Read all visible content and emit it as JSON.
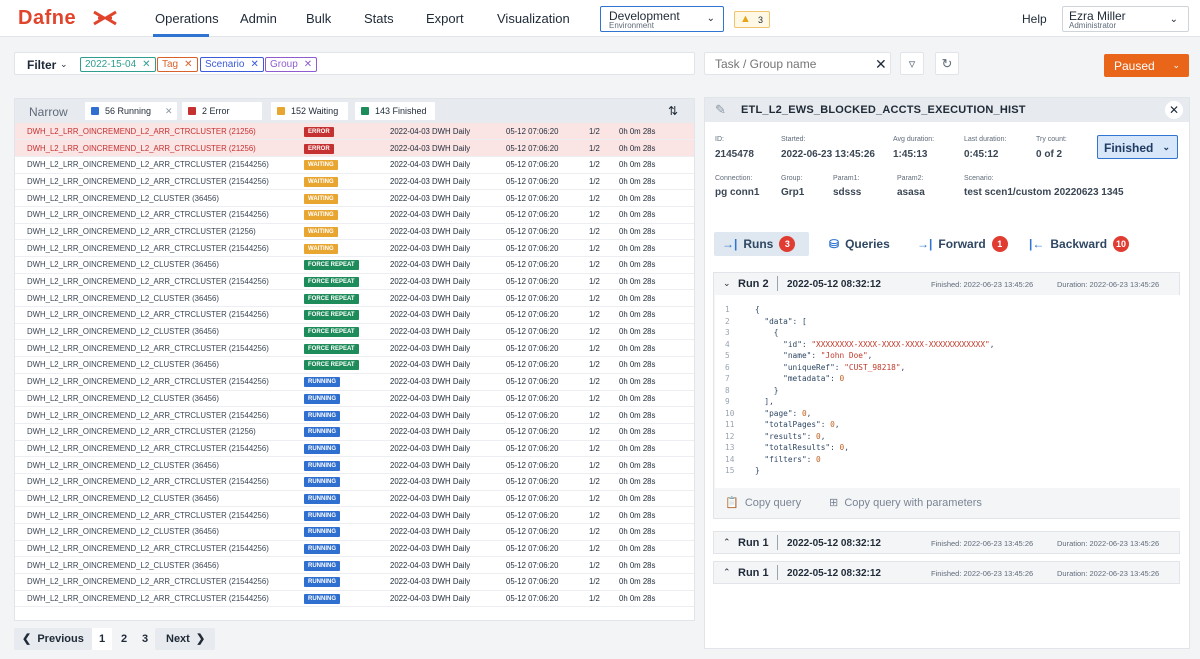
{
  "app": {
    "name": "Dafne"
  },
  "nav": {
    "items": [
      "Operations",
      "Admin",
      "Bulk",
      "Stats",
      "Export",
      "Visualization"
    ],
    "active": "Operations"
  },
  "env": {
    "name": "Development",
    "sub": "Environment"
  },
  "warnings": {
    "count": "3"
  },
  "help": "Help",
  "user": {
    "name": "Ezra Miller",
    "role": "Administrator"
  },
  "filter": {
    "label": "Filter",
    "chips": [
      {
        "text": "2022-15-04",
        "color": "#2f9e8f"
      },
      {
        "text": "Tag",
        "color": "#d9622b"
      },
      {
        "text": "Scenario",
        "color": "#3b5bdb"
      },
      {
        "text": "Group",
        "color": "#8e5cd0"
      }
    ]
  },
  "search": {
    "placeholder": "Task / Group name"
  },
  "status_button": "Paused",
  "stats": {
    "narrow": "Narrow",
    "running": "56 Running",
    "error": "2 Error",
    "waiting": "152 Waiting",
    "finished": "143 Finished"
  },
  "status_colors": {
    "ERROR": "#c53030",
    "WAITING": "#e8a530",
    "FORCE REPEAT": "#1e8b5a",
    "RUNNING": "#2f6fd0"
  },
  "rows": [
    {
      "name": "DWH_L2_LRR_OINCREMEND_L2_ARR_CTRCLUSTER (21256)",
      "status": "ERROR",
      "d1": "2022-04-03 DWH Daily",
      "d2": "05-12 07:06:20",
      "d3": "1/2",
      "d4": "0h 0m 28s"
    },
    {
      "name": "DWH_L2_LRR_OINCREMEND_L2_ARR_CTRCLUSTER (21256)",
      "status": "ERROR",
      "d1": "2022-04-03 DWH Daily",
      "d2": "05-12 07:06:20",
      "d3": "1/2",
      "d4": "0h 0m 28s"
    },
    {
      "name": "DWH_L2_LRR_OINCREMEND_L2_ARR_CTRCLUSTER (21544256)",
      "status": "WAITING",
      "d1": "2022-04-03 DWH Daily",
      "d2": "05-12 07:06:20",
      "d3": "1/2",
      "d4": "0h 0m 28s"
    },
    {
      "name": "DWH_L2_LRR_OINCREMEND_L2_ARR_CTRCLUSTER (21544256)",
      "status": "WAITING",
      "d1": "2022-04-03 DWH Daily",
      "d2": "05-12 07:06:20",
      "d3": "1/2",
      "d4": "0h 0m 28s"
    },
    {
      "name": "DWH_L2_LRR_OINCREMEND_L2_CLUSTER (36456)",
      "status": "WAITING",
      "d1": "2022-04-03 DWH Daily",
      "d2": "05-12 07:06:20",
      "d3": "1/2",
      "d4": "0h 0m 28s"
    },
    {
      "name": "DWH_L2_LRR_OINCREMEND_L2_ARR_CTRCLUSTER (21544256)",
      "status": "WAITING",
      "d1": "2022-04-03 DWH Daily",
      "d2": "05-12 07:06:20",
      "d3": "1/2",
      "d4": "0h 0m 28s"
    },
    {
      "name": "DWH_L2_LRR_OINCREMEND_L2_ARR_CTRCLUSTER (21256)",
      "status": "WAITING",
      "d1": "2022-04-03 DWH Daily",
      "d2": "05-12 07:06:20",
      "d3": "1/2",
      "d4": "0h 0m 28s"
    },
    {
      "name": "DWH_L2_LRR_OINCREMEND_L2_ARR_CTRCLUSTER (21544256)",
      "status": "WAITING",
      "d1": "2022-04-03 DWH Daily",
      "d2": "05-12 07:06:20",
      "d3": "1/2",
      "d4": "0h 0m 28s"
    },
    {
      "name": "DWH_L2_LRR_OINCREMEND_L2_CLUSTER (36456)",
      "status": "FORCE REPEAT",
      "d1": "2022-04-03 DWH Daily",
      "d2": "05-12 07:06:20",
      "d3": "1/2",
      "d4": "0h 0m 28s"
    },
    {
      "name": "DWH_L2_LRR_OINCREMEND_L2_ARR_CTRCLUSTER (21544256)",
      "status": "FORCE REPEAT",
      "d1": "2022-04-03 DWH Daily",
      "d2": "05-12 07:06:20",
      "d3": "1/2",
      "d4": "0h 0m 28s"
    },
    {
      "name": "DWH_L2_LRR_OINCREMEND_L2_CLUSTER (36456)",
      "status": "FORCE REPEAT",
      "d1": "2022-04-03 DWH Daily",
      "d2": "05-12 07:06:20",
      "d3": "1/2",
      "d4": "0h 0m 28s"
    },
    {
      "name": "DWH_L2_LRR_OINCREMEND_L2_ARR_CTRCLUSTER (21544256)",
      "status": "FORCE REPEAT",
      "d1": "2022-04-03 DWH Daily",
      "d2": "05-12 07:06:20",
      "d3": "1/2",
      "d4": "0h 0m 28s"
    },
    {
      "name": "DWH_L2_LRR_OINCREMEND_L2_CLUSTER (36456)",
      "status": "FORCE REPEAT",
      "d1": "2022-04-03 DWH Daily",
      "d2": "05-12 07:06:20",
      "d3": "1/2",
      "d4": "0h 0m 28s"
    },
    {
      "name": "DWH_L2_LRR_OINCREMEND_L2_ARR_CTRCLUSTER (21544256)",
      "status": "FORCE REPEAT",
      "d1": "2022-04-03 DWH Daily",
      "d2": "05-12 07:06:20",
      "d3": "1/2",
      "d4": "0h 0m 28s"
    },
    {
      "name": "DWH_L2_LRR_OINCREMEND_L2_CLUSTER (36456)",
      "status": "FORCE REPEAT",
      "d1": "2022-04-03 DWH Daily",
      "d2": "05-12 07:06:20",
      "d3": "1/2",
      "d4": "0h 0m 28s"
    },
    {
      "name": "DWH_L2_LRR_OINCREMEND_L2_ARR_CTRCLUSTER (21544256)",
      "status": "RUNNING",
      "d1": "2022-04-03 DWH Daily",
      "d2": "05-12 07:06:20",
      "d3": "1/2",
      "d4": "0h 0m 28s"
    },
    {
      "name": "DWH_L2_LRR_OINCREMEND_L2_CLUSTER (36456)",
      "status": "RUNNING",
      "d1": "2022-04-03 DWH Daily",
      "d2": "05-12 07:06:20",
      "d3": "1/2",
      "d4": "0h 0m 28s"
    },
    {
      "name": "DWH_L2_LRR_OINCREMEND_L2_ARR_CTRCLUSTER (21544256)",
      "status": "RUNNING",
      "d1": "2022-04-03 DWH Daily",
      "d2": "05-12 07:06:20",
      "d3": "1/2",
      "d4": "0h 0m 28s"
    },
    {
      "name": "DWH_L2_LRR_OINCREMEND_L2_ARR_CTRCLUSTER (21256)",
      "status": "RUNNING",
      "d1": "2022-04-03 DWH Daily",
      "d2": "05-12 07:06:20",
      "d3": "1/2",
      "d4": "0h 0m 28s"
    },
    {
      "name": "DWH_L2_LRR_OINCREMEND_L2_ARR_CTRCLUSTER (21544256)",
      "status": "RUNNING",
      "d1": "2022-04-03 DWH Daily",
      "d2": "05-12 07:06:20",
      "d3": "1/2",
      "d4": "0h 0m 28s"
    },
    {
      "name": "DWH_L2_LRR_OINCREMEND_L2_CLUSTER (36456)",
      "status": "RUNNING",
      "d1": "2022-04-03 DWH Daily",
      "d2": "05-12 07:06:20",
      "d3": "1/2",
      "d4": "0h 0m 28s"
    },
    {
      "name": "DWH_L2_LRR_OINCREMEND_L2_ARR_CTRCLUSTER (21544256)",
      "status": "RUNNING",
      "d1": "2022-04-03 DWH Daily",
      "d2": "05-12 07:06:20",
      "d3": "1/2",
      "d4": "0h 0m 28s"
    },
    {
      "name": "DWH_L2_LRR_OINCREMEND_L2_CLUSTER (36456)",
      "status": "RUNNING",
      "d1": "2022-04-03 DWH Daily",
      "d2": "05-12 07:06:20",
      "d3": "1/2",
      "d4": "0h 0m 28s"
    },
    {
      "name": "DWH_L2_LRR_OINCREMEND_L2_ARR_CTRCLUSTER (21544256)",
      "status": "RUNNING",
      "d1": "2022-04-03 DWH Daily",
      "d2": "05-12 07:06:20",
      "d3": "1/2",
      "d4": "0h 0m 28s"
    },
    {
      "name": "DWH_L2_LRR_OINCREMEND_L2_CLUSTER (36456)",
      "status": "RUNNING",
      "d1": "2022-04-03 DWH Daily",
      "d2": "05-12 07:06:20",
      "d3": "1/2",
      "d4": "0h 0m 28s"
    },
    {
      "name": "DWH_L2_LRR_OINCREMEND_L2_ARR_CTRCLUSTER (21544256)",
      "status": "RUNNING",
      "d1": "2022-04-03 DWH Daily",
      "d2": "05-12 07:06:20",
      "d3": "1/2",
      "d4": "0h 0m 28s"
    },
    {
      "name": "DWH_L2_LRR_OINCREMEND_L2_CLUSTER (36456)",
      "status": "RUNNING",
      "d1": "2022-04-03 DWH Daily",
      "d2": "05-12 07:06:20",
      "d3": "1/2",
      "d4": "0h 0m 28s"
    },
    {
      "name": "DWH_L2_LRR_OINCREMEND_L2_ARR_CTRCLUSTER (21544256)",
      "status": "RUNNING",
      "d1": "2022-04-03 DWH Daily",
      "d2": "05-12 07:06:20",
      "d3": "1/2",
      "d4": "0h 0m 28s"
    },
    {
      "name": "DWH_L2_LRR_OINCREMEND_L2_ARR_CTRCLUSTER (21544256)",
      "status": "RUNNING",
      "d1": "2022-04-03 DWH Daily",
      "d2": "05-12 07:06:20",
      "d3": "1/2",
      "d4": "0h 0m 28s"
    }
  ],
  "pager": {
    "prev": "Previous",
    "next": "Next",
    "pages": [
      "1",
      "2",
      "3"
    ]
  },
  "detail": {
    "title": "ETL_L2_EWS_BLOCKED_ACCTS_EXECUTION_HIST",
    "fields": [
      {
        "label": "ID:",
        "value": "2145478"
      },
      {
        "label": "Started:",
        "value": "2022-06-23 13:45:26"
      },
      {
        "label": "Avg duration:",
        "value": "1:45:13"
      },
      {
        "label": "Last duration:",
        "value": "0:45:12"
      },
      {
        "label": "Try count:",
        "value": "0 of 2"
      },
      {
        "label": "Connection:",
        "value": "pg conn1"
      },
      {
        "label": "Group:",
        "value": "Grp1"
      },
      {
        "label": "Param1:",
        "value": "sdsss"
      },
      {
        "label": "Param2:",
        "value": "asasa"
      },
      {
        "label": "Scenario:",
        "value": "test scen1/custom 20220623 1345"
      }
    ],
    "status": "Finished",
    "tabs": [
      {
        "label": "Runs",
        "count": "3",
        "icon": "runs-icon"
      },
      {
        "label": "Queries",
        "count": "",
        "icon": "database-icon"
      },
      {
        "label": "Forward",
        "count": "1",
        "icon": "forward-icon"
      },
      {
        "label": "Backward",
        "count": "10",
        "icon": "backward-icon"
      }
    ],
    "runs": [
      {
        "name": "Run 2",
        "date": "2022-05-12 08:32:12",
        "finished": "Finished: 2022-06-23 13:45:26",
        "duration": "Duration: 2022-06-23 13:45:26"
      },
      {
        "name": "Run 1",
        "date": "2022-05-12 08:32:12",
        "finished": "Finished: 2022-06-23 13:45:26",
        "duration": "Duration: 2022-06-23 13:45:26"
      },
      {
        "name": "Run 1",
        "date": "2022-05-12 08:32:12",
        "finished": "Finished: 2022-06-23 13:45:26",
        "duration": "Duration: 2022-06-23 13:45:26"
      }
    ],
    "code": [
      "{",
      "  \"data\": [",
      "    {",
      "      \"id\": \"XXXXXXXX-XXXX-XXXX-XXXX-XXXXXXXXXXXX\",",
      "      \"name\": \"John Doe\",",
      "      \"uniqueRef\": \"CUST_98218\",",
      "      \"metadata\": 0",
      "    }",
      "  ],",
      "  \"page\": 0,",
      "  \"totalPages\": 0,",
      "  \"results\": 0,",
      "  \"totalResults\": 0,",
      "  \"filters\": 0",
      "}"
    ],
    "copy_query": "Copy query",
    "copy_query_params": "Copy query with parameters"
  }
}
